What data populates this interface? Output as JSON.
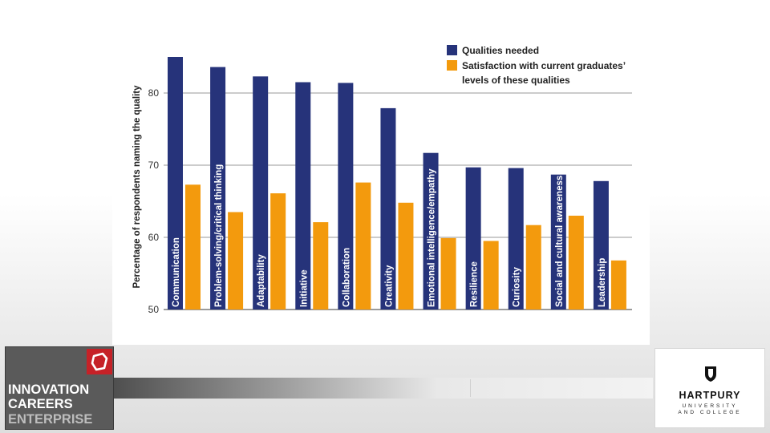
{
  "chart_data": {
    "type": "bar",
    "title": "",
    "xlabel": "",
    "ylabel": "Percentage of respondents naming the quality",
    "ylim": [
      50,
      86
    ],
    "yticks": [
      50,
      60,
      70,
      80
    ],
    "grid": true,
    "legend_position": "top-right",
    "categories": [
      "Communication",
      "Problem-solving/critical thinking",
      "Adaptability",
      "Initiative",
      "Collaboration",
      "Creativity",
      "Emotional intelligence/empathy",
      "Resilience",
      "Curiosity",
      "Social and cultural awareness",
      "Leadership"
    ],
    "series": [
      {
        "name": "Qualities needed",
        "color": "#26337a",
        "values": [
          85.0,
          83.6,
          82.3,
          81.5,
          81.4,
          77.9,
          71.7,
          69.7,
          69.6,
          68.7,
          67.8
        ]
      },
      {
        "name": "Satisfaction with current graduates’ levels of these qualities",
        "color": "#f39a0d",
        "values": [
          67.3,
          63.5,
          66.1,
          62.1,
          67.6,
          64.8,
          59.9,
          59.5,
          61.7,
          63.0,
          56.8
        ]
      }
    ],
    "legend": {
      "line1": "Qualities needed",
      "line2a": "Satisfaction with current graduates’",
      "line2b": "levels of these qualities"
    }
  },
  "brand": {
    "line1": "INNOVATION",
    "line2": "CAREERS",
    "line3": "ENTERPRISE"
  },
  "partner": {
    "name": "HARTPURY",
    "sub1": "UNIVERSITY",
    "sub2": "AND COLLEGE"
  }
}
